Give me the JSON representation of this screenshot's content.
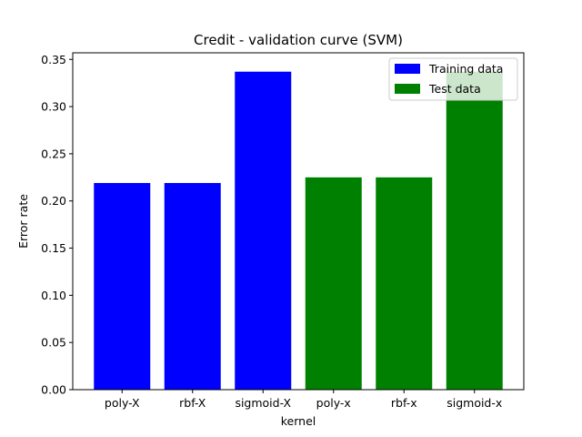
{
  "chart_data": {
    "type": "bar",
    "title": "Credit - validation curve (SVM)",
    "xlabel": "kernel",
    "ylabel": "Error rate",
    "ylim": [
      0,
      0.357
    ],
    "yticks": [
      "0.00",
      "0.05",
      "0.10",
      "0.15",
      "0.20",
      "0.25",
      "0.30",
      "0.35"
    ],
    "legend_position": "top-right",
    "series": [
      {
        "name": "Training data",
        "color": "#0000ff",
        "categories": [
          "poly-X",
          "rbf-X",
          "sigmoid-X"
        ],
        "values": [
          0.219,
          0.219,
          0.337
        ]
      },
      {
        "name": "Test data",
        "color": "#008000",
        "categories": [
          "poly-x",
          "rbf-x",
          "sigmoid-x"
        ],
        "values": [
          0.225,
          0.225,
          0.337
        ]
      }
    ]
  }
}
